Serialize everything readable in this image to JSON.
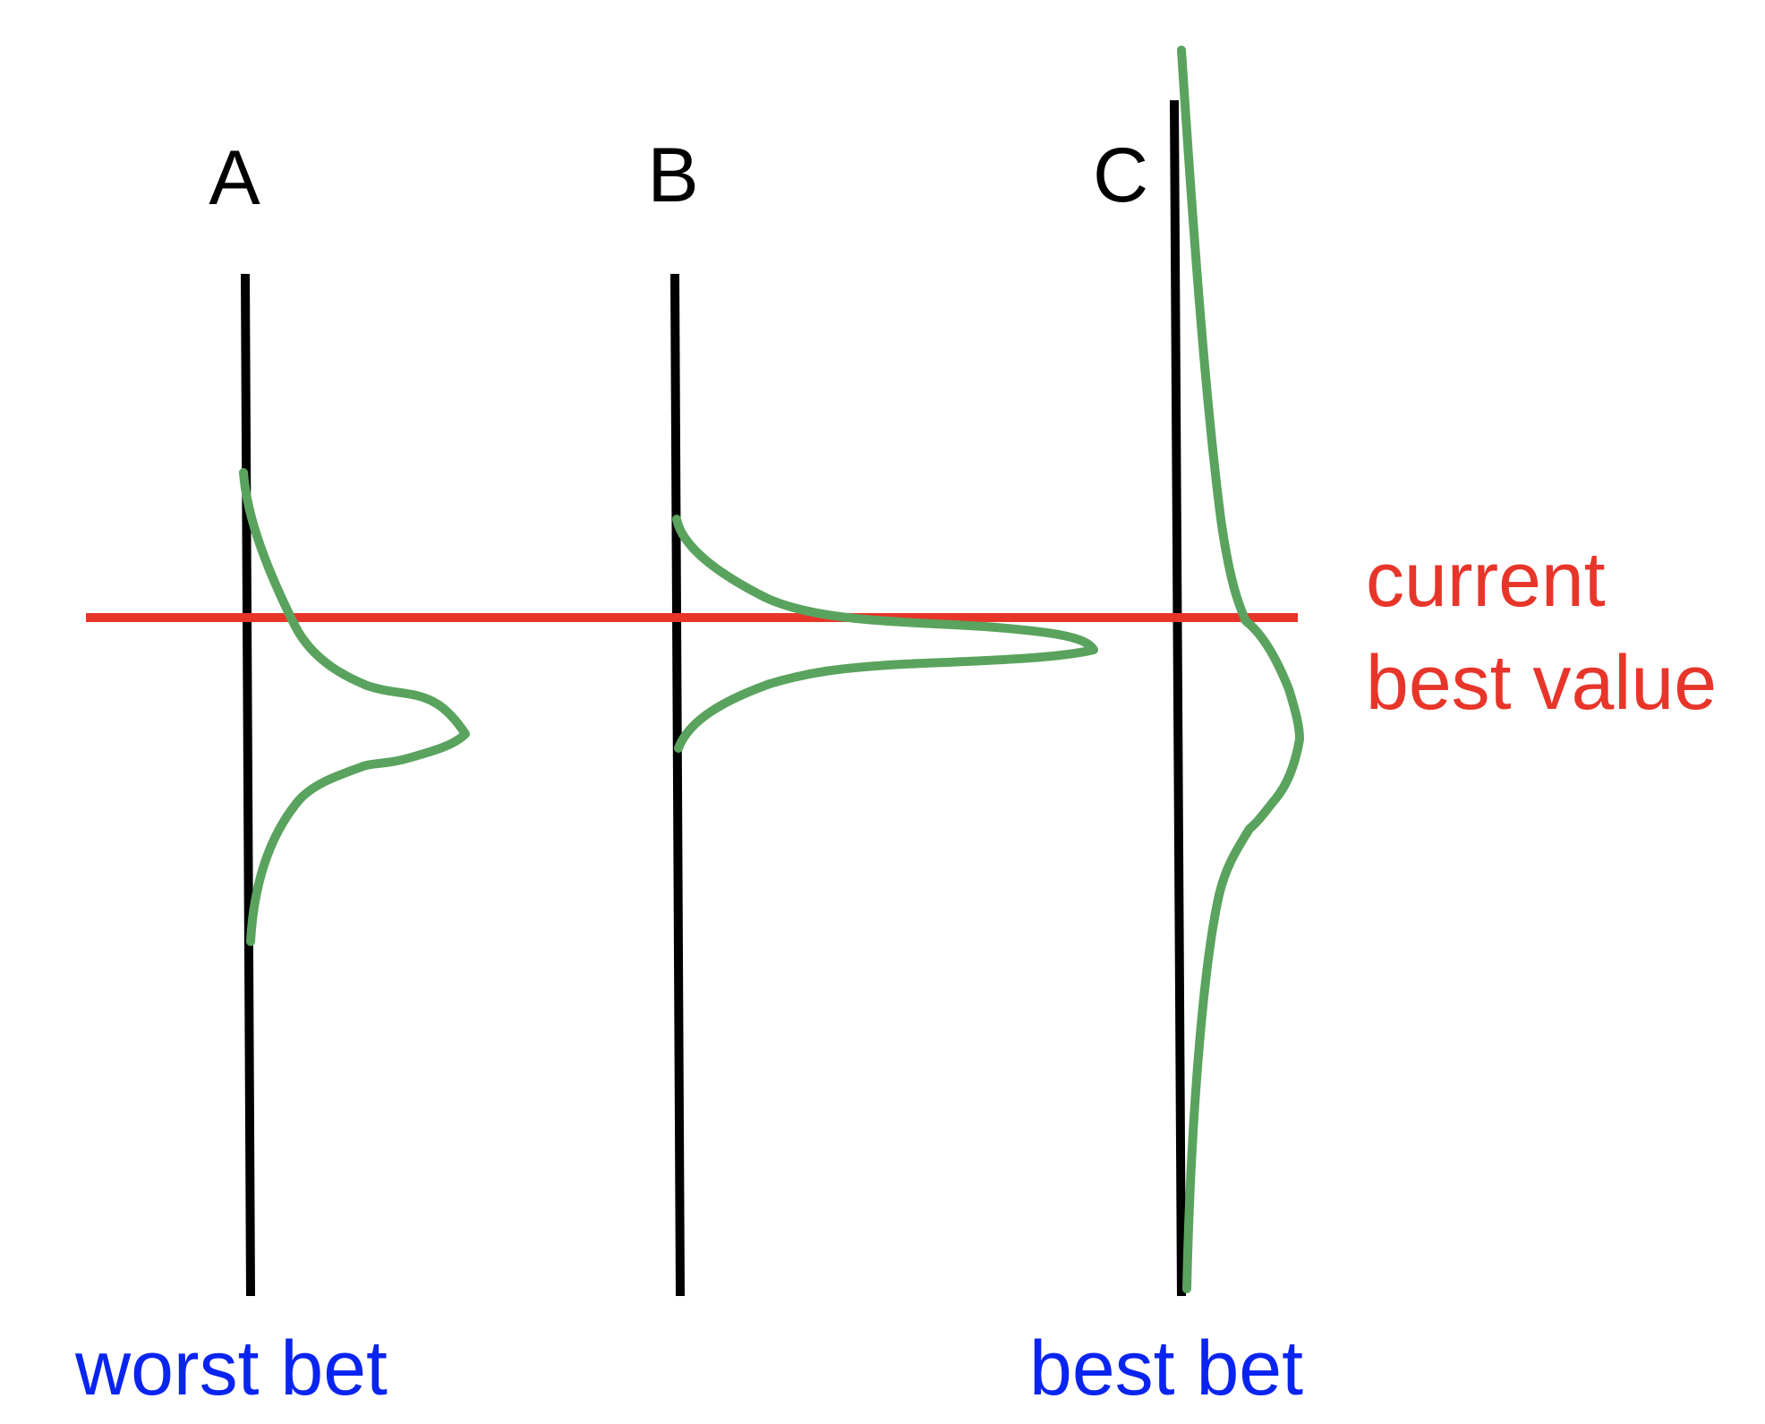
{
  "columns": [
    {
      "id": "A",
      "label": "A"
    },
    {
      "id": "B",
      "label": "B"
    },
    {
      "id": "C",
      "label": "C"
    }
  ],
  "reference": {
    "line1": "current",
    "line2": "best value"
  },
  "annotations": {
    "worst": "worst bet",
    "best": "best bet"
  },
  "colors": {
    "axis": "#000000",
    "reference": "#e8352a",
    "distribution": "#5aa35e",
    "bet_text": "#0a24f0"
  }
}
